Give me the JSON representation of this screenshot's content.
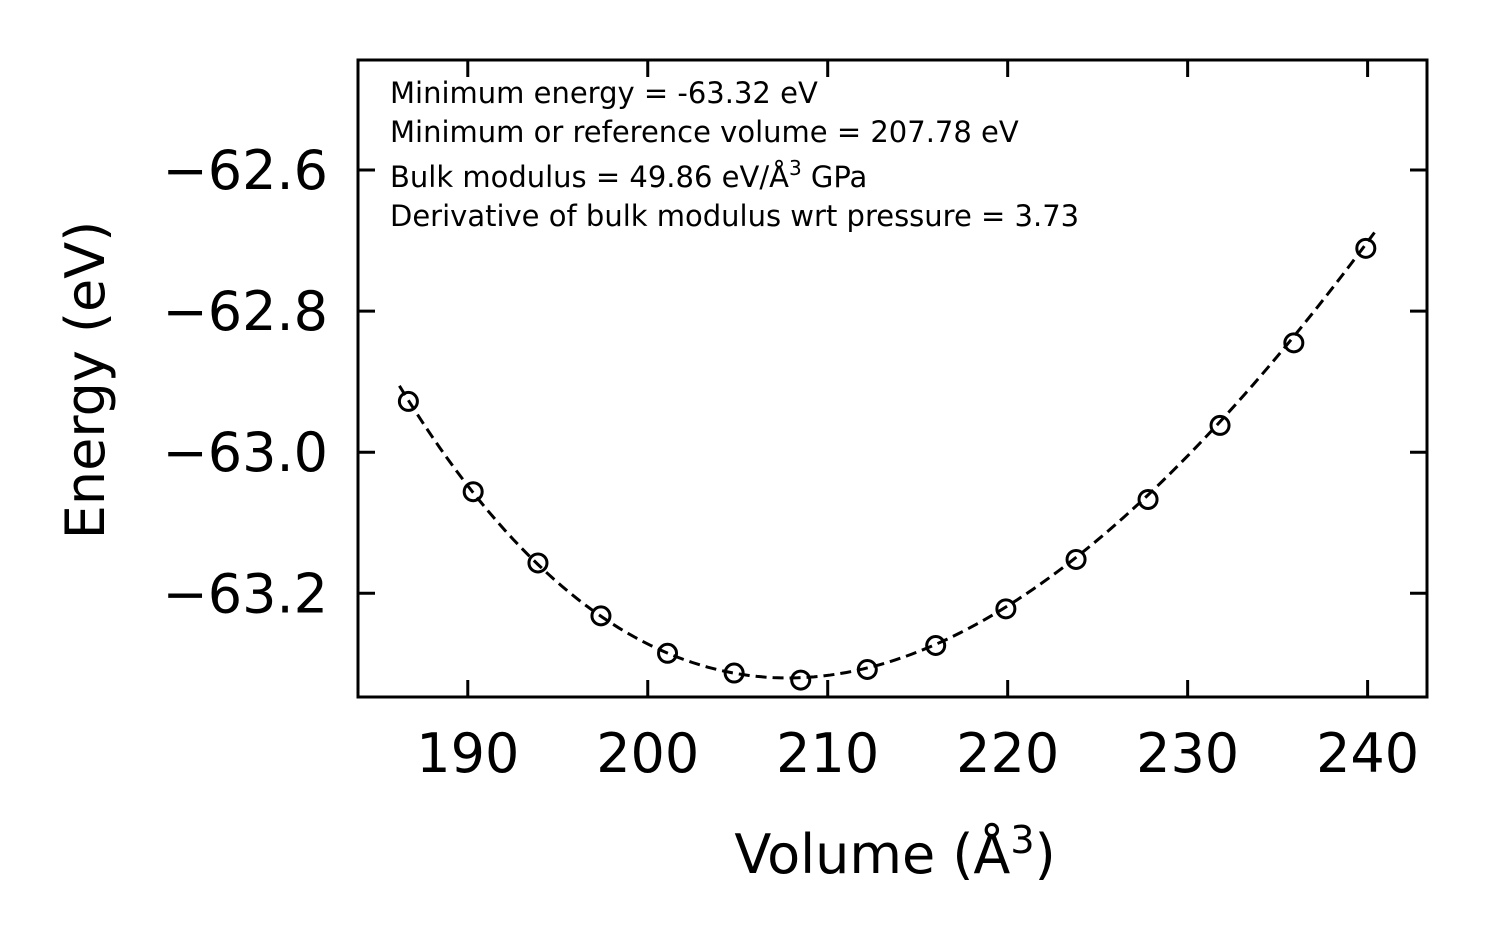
{
  "chart_data": {
    "type": "scatter",
    "title": "",
    "xlabel": "Volume (Å",
    "xlabel_sup": "3",
    "xlabel_close": ")",
    "ylabel": "Energy (eV)",
    "xlim": [
      183.9,
      243.3
    ],
    "ylim": [
      -63.347,
      -62.444
    ],
    "xticks": [
      190,
      200,
      210,
      220,
      230,
      240
    ],
    "xtick_labels": [
      "190",
      "200",
      "210",
      "220",
      "230",
      "240"
    ],
    "yticks": [
      -62.6,
      -62.8,
      -63.0,
      -63.2
    ],
    "ytick_labels": [
      "−62.6",
      "−62.8",
      "−63.0",
      "−63.2"
    ],
    "series": [
      {
        "name": "data",
        "style": "open-circle",
        "x": [
          186.7,
          190.3,
          193.9,
          197.4,
          201.1,
          204.8,
          208.5,
          212.2,
          216.0,
          219.9,
          223.8,
          227.8,
          231.8,
          235.9,
          239.9
        ],
        "y": [
          -62.928,
          -63.056,
          -63.157,
          -63.232,
          -63.285,
          -63.313,
          -63.323,
          -63.308,
          -63.274,
          -63.222,
          -63.152,
          -63.067,
          -62.962,
          -62.845,
          -62.711
        ]
      },
      {
        "name": "fit",
        "style": "dashed-line",
        "eos": {
          "E0": -63.32,
          "V0": 207.78,
          "B0": 49.86,
          "B0_prime": 3.73
        },
        "x_range": [
          186.2,
          240.4
        ]
      }
    ],
    "annotations": [
      {
        "text": "Minimum energy = -63.32 eV"
      },
      {
        "text": "Minimum or reference volume = 207.78 eV"
      },
      {
        "text": "Bulk modulus = 49.86 eV/Å",
        "sup": "3",
        "suffix": " GPa"
      },
      {
        "text": "Derivative of bulk modulus wrt pressure = 3.73"
      }
    ],
    "colors": {
      "line": "#000000",
      "marker": "#000000",
      "background": "#ffffff"
    },
    "grid": false,
    "legend": "none"
  }
}
